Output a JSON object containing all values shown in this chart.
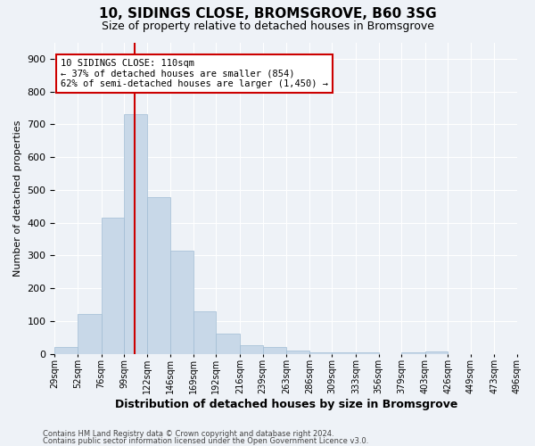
{
  "title1": "10, SIDINGS CLOSE, BROMSGROVE, B60 3SG",
  "title2": "Size of property relative to detached houses in Bromsgrove",
  "xlabel": "Distribution of detached houses by size in Bromsgrove",
  "ylabel": "Number of detached properties",
  "bar_values": [
    20,
    122,
    415,
    730,
    478,
    315,
    130,
    60,
    25,
    20,
    10,
    5,
    5,
    5,
    0,
    5,
    8,
    0,
    0,
    0
  ],
  "bin_edges": [
    29,
    52,
    76,
    99,
    122,
    146,
    169,
    192,
    216,
    239,
    263,
    286,
    309,
    333,
    356,
    379,
    403,
    426,
    449,
    473,
    496
  ],
  "tick_labels": [
    "29sqm",
    "52sqm",
    "76sqm",
    "99sqm",
    "122sqm",
    "146sqm",
    "169sqm",
    "192sqm",
    "216sqm",
    "239sqm",
    "263sqm",
    "286sqm",
    "309sqm",
    "333sqm",
    "356sqm",
    "379sqm",
    "403sqm",
    "426sqm",
    "449sqm",
    "473sqm",
    "496sqm"
  ],
  "vline_x": 110,
  "bar_color": "#c8d8e8",
  "bar_edge_color": "#a0bcd4",
  "vline_color": "#cc0000",
  "annotation_text": "10 SIDINGS CLOSE: 110sqm\n← 37% of detached houses are smaller (854)\n62% of semi-detached houses are larger (1,450) →",
  "annotation_box_color": "white",
  "annotation_box_edge_color": "#cc0000",
  "ylim": [
    0,
    950
  ],
  "yticks": [
    0,
    100,
    200,
    300,
    400,
    500,
    600,
    700,
    800,
    900
  ],
  "background_color": "#eef2f7",
  "footer1": "Contains HM Land Registry data © Crown copyright and database right 2024.",
  "footer2": "Contains public sector information licensed under the Open Government Licence v3.0.",
  "title1_fontsize": 11,
  "title2_fontsize": 9,
  "xlabel_fontsize": 9,
  "ylabel_fontsize": 8,
  "tick_fontsize": 7,
  "annotation_fontsize": 7.5,
  "footer_fontsize": 6
}
